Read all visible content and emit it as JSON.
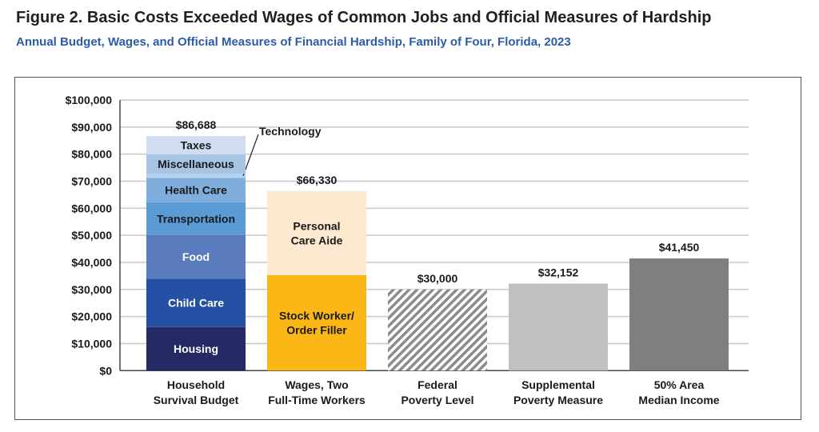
{
  "chart_data": {
    "type": "bar",
    "title": "Figure 2. Basic Costs Exceeded Wages of Common Jobs and Official Measures of Hardship",
    "subtitle": "Annual Budget, Wages, and Official Measures of Financial Hardship, Family of Four, Florida, 2023",
    "ylim": [
      0,
      100000
    ],
    "yticks": [
      0,
      10000,
      20000,
      30000,
      40000,
      50000,
      60000,
      70000,
      80000,
      90000,
      100000
    ],
    "ytick_labels": [
      "$0",
      "$10,000",
      "$20,000",
      "$30,000",
      "$40,000",
      "$50,000",
      "$60,000",
      "$70,000",
      "$80,000",
      "$90,000",
      "$100,000"
    ],
    "grid": true,
    "categories": [
      [
        "Household",
        "Survival Budget"
      ],
      [
        "Wages, Two",
        "Full-Time Workers"
      ],
      [
        "Federal",
        "Poverty Level"
      ],
      [
        "Supplemental",
        "Poverty Measure"
      ],
      [
        "50% Area",
        "Median Income"
      ]
    ],
    "bars": [
      {
        "total_label": "$86,688",
        "segments": [
          {
            "name": "Housing",
            "value": 16100,
            "color": "#262a64",
            "text": "#ffffff"
          },
          {
            "name": "Child Care",
            "value": 17900,
            "color": "#2451a3",
            "text": "#ffffff"
          },
          {
            "name": "Food",
            "value": 16100,
            "color": "#5a7bbd",
            "text": "#ffffff"
          },
          {
            "name": "Transportation",
            "value": 12100,
            "color": "#5b9bd5",
            "text": "#1a1a1a"
          },
          {
            "name": "Health Care",
            "value": 9000,
            "color": "#7faddc",
            "text": "#1a1a1a"
          },
          {
            "name": "Technology",
            "value": 1500,
            "color": "#b3d4f0",
            "text": "#1a1a1a",
            "callout": true
          },
          {
            "name": "Miscellaneous",
            "value": 7200,
            "color": "#a8c4e5",
            "text": "#1a1a1a"
          },
          {
            "name": "Taxes",
            "value": 6788,
            "color": "#d0ddf0",
            "text": "#1a1a1a"
          }
        ]
      },
      {
        "total_label": "$66,330",
        "segments": [
          {
            "name": "Stock Worker/\nOrder Filler",
            "value": 35300,
            "color": "#fbb716",
            "text": "#1a1a1a"
          },
          {
            "name": "Personal\nCare Aide",
            "value": 31030,
            "color": "#fde9d0",
            "text": "#1a1a1a"
          }
        ]
      },
      {
        "total_label": "$30,000",
        "segments": [
          {
            "name": "",
            "value": 30000,
            "color": "hatch"
          }
        ]
      },
      {
        "total_label": "$32,152",
        "segments": [
          {
            "name": "",
            "value": 32152,
            "color": "#c0c0c0"
          }
        ]
      },
      {
        "total_label": "$41,450",
        "segments": [
          {
            "name": "",
            "value": 41450,
            "color": "#7f7f7f"
          }
        ]
      }
    ]
  }
}
